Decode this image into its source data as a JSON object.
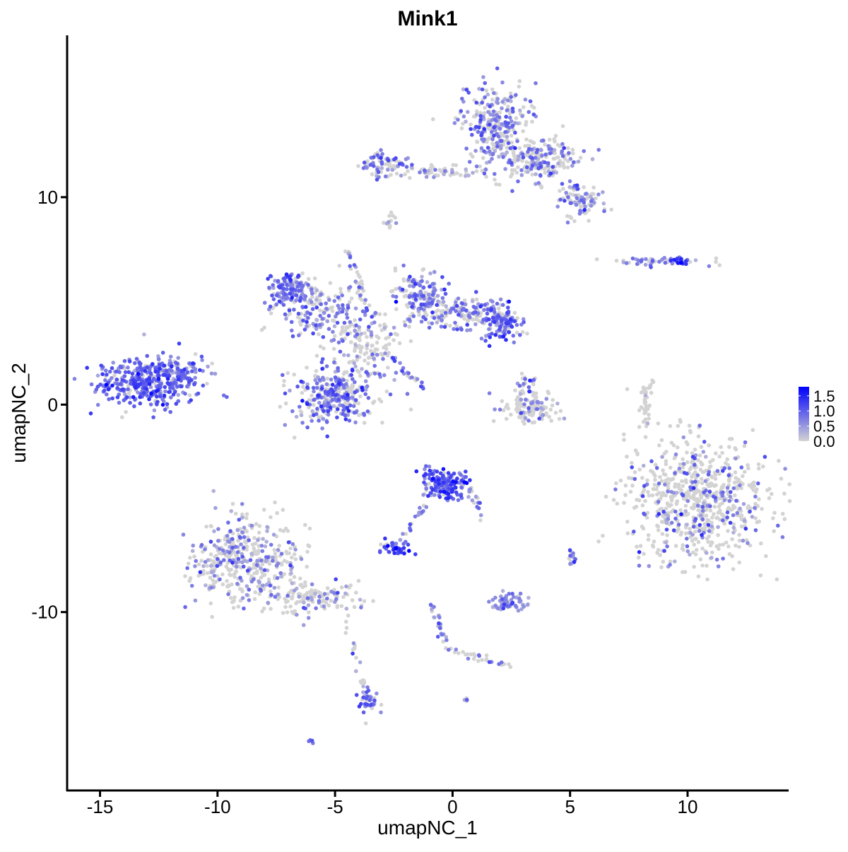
{
  "chart_data": {
    "type": "scatter",
    "title": "Mink1",
    "xlabel": "umapNC_1",
    "ylabel": "umapNC_2",
    "xlim": [
      -16.4,
      14.3
    ],
    "ylim": [
      -18.6,
      17.8
    ],
    "x_ticks": [
      -15,
      -10,
      -5,
      0,
      5,
      10
    ],
    "x_tick_labels": [
      "-15",
      "-10",
      "-5",
      "0",
      "5",
      "10"
    ],
    "y_ticks": [
      -10,
      0,
      10
    ],
    "y_tick_labels": [
      "-10",
      "0",
      "10"
    ],
    "grid": false,
    "color_scale": {
      "low": "#d3d3d3",
      "high": "#0000ff",
      "min": 0,
      "max": 1.8
    },
    "legend": {
      "placement": "right",
      "ticks": [
        1.5,
        1.0,
        0.5,
        0.0
      ],
      "tick_labels": [
        "1.5",
        "1.0",
        "0.5",
        "0.0"
      ]
    },
    "clusters": [
      {
        "x": -12.9,
        "y": 1.1,
        "sx": 1.1,
        "sy": 0.6,
        "n": 380,
        "p_expr": 0.85,
        "mean_expr": 0.9
      },
      {
        "x": -11.7,
        "y": 1.6,
        "sx": 0.6,
        "sy": 0.4,
        "n": 60,
        "p_expr": 0.7,
        "mean_expr": 0.7
      },
      {
        "x": 1.8,
        "y": 13.6,
        "sx": 0.7,
        "sy": 1.0,
        "n": 260,
        "p_expr": 0.55,
        "mean_expr": 0.7
      },
      {
        "x": 3.6,
        "y": 11.8,
        "sx": 0.9,
        "sy": 0.5,
        "n": 200,
        "p_expr": 0.4,
        "mean_expr": 0.7
      },
      {
        "x": 5.4,
        "y": 9.8,
        "sx": 0.5,
        "sy": 0.4,
        "n": 90,
        "p_expr": 0.5,
        "mean_expr": 0.7
      },
      {
        "x": -3.0,
        "y": 11.6,
        "sx": 0.6,
        "sy": 0.3,
        "n": 70,
        "p_expr": 0.55,
        "mean_expr": 0.7
      },
      {
        "x": -0.6,
        "y": 11.2,
        "sx": 1.1,
        "sy": 0.2,
        "n": 60,
        "p_expr": 0.3,
        "mean_expr": 0.6
      },
      {
        "x": -6.9,
        "y": 5.6,
        "sx": 0.5,
        "sy": 0.4,
        "n": 120,
        "p_expr": 0.8,
        "mean_expr": 0.8
      },
      {
        "x": -5.6,
        "y": 4.4,
        "sx": 0.9,
        "sy": 0.6,
        "n": 160,
        "p_expr": 0.55,
        "mean_expr": 0.7
      },
      {
        "x": -1.4,
        "y": 5.3,
        "sx": 0.5,
        "sy": 0.6,
        "n": 140,
        "p_expr": 0.6,
        "mean_expr": 0.7
      },
      {
        "x": 0.6,
        "y": 4.4,
        "sx": 1.0,
        "sy": 0.4,
        "n": 160,
        "p_expr": 0.45,
        "mean_expr": 0.7
      },
      {
        "x": 2.1,
        "y": 4.0,
        "sx": 0.4,
        "sy": 0.5,
        "n": 110,
        "p_expr": 0.8,
        "mean_expr": 0.9
      },
      {
        "x": -3.7,
        "y": 2.8,
        "sx": 0.9,
        "sy": 1.0,
        "n": 160,
        "p_expr": 0.35,
        "mean_expr": 0.6
      },
      {
        "x": -5.2,
        "y": 0.4,
        "sx": 0.8,
        "sy": 0.7,
        "n": 280,
        "p_expr": 0.65,
        "mean_expr": 0.8
      },
      {
        "x": -8.8,
        "y": -7.5,
        "sx": 1.1,
        "sy": 1.1,
        "n": 420,
        "p_expr": 0.35,
        "mean_expr": 0.6
      },
      {
        "x": -6.0,
        "y": -9.3,
        "sx": 1.0,
        "sy": 0.4,
        "n": 120,
        "p_expr": 0.25,
        "mean_expr": 0.6
      },
      {
        "x": -3.6,
        "y": -14.3,
        "sx": 0.2,
        "sy": 0.4,
        "n": 40,
        "p_expr": 0.6,
        "mean_expr": 0.8
      },
      {
        "x": 10.4,
        "y": -4.6,
        "sx": 1.5,
        "sy": 1.5,
        "n": 700,
        "p_expr": 0.22,
        "mean_expr": 0.7
      },
      {
        "x": -0.4,
        "y": -3.8,
        "sx": 0.5,
        "sy": 0.4,
        "n": 170,
        "p_expr": 0.85,
        "mean_expr": 1.0
      },
      {
        "x": -2.4,
        "y": -6.9,
        "sx": 0.3,
        "sy": 0.15,
        "n": 40,
        "p_expr": 0.9,
        "mean_expr": 1.3
      },
      {
        "x": 2.4,
        "y": -9.5,
        "sx": 0.4,
        "sy": 0.2,
        "n": 60,
        "p_expr": 0.9,
        "mean_expr": 0.6
      },
      {
        "x": 3.2,
        "y": -0.2,
        "sx": 0.6,
        "sy": 0.3,
        "n": 110,
        "p_expr": 0.25,
        "mean_expr": 0.6
      },
      {
        "x": 3.2,
        "y": 0.9,
        "sx": 0.2,
        "sy": 0.3,
        "n": 30,
        "p_expr": 0.6,
        "mean_expr": 0.9
      },
      {
        "x": 8.6,
        "y": 6.9,
        "sx": 1.0,
        "sy": 0.1,
        "n": 50,
        "p_expr": 0.5,
        "mean_expr": 0.7
      },
      {
        "x": 9.6,
        "y": 6.9,
        "sx": 0.2,
        "sy": 0.1,
        "n": 20,
        "p_expr": 0.9,
        "mean_expr": 1.2
      },
      {
        "x": 5.1,
        "y": -7.4,
        "sx": 0.1,
        "sy": 0.2,
        "n": 15,
        "p_expr": 0.7,
        "mean_expr": 0.8
      },
      {
        "x": 8.2,
        "y": -0.2,
        "sx": 0.15,
        "sy": 0.6,
        "n": 30,
        "p_expr": 0.1,
        "mean_expr": 0.5
      },
      {
        "x": -2.7,
        "y": 8.9,
        "sx": 0.15,
        "sy": 0.2,
        "n": 12,
        "p_expr": 0.3,
        "mean_expr": 0.5
      },
      {
        "x": -6.0,
        "y": -16.2,
        "sx": 0.1,
        "sy": 0.05,
        "n": 6,
        "p_expr": 0.8,
        "mean_expr": 0.7
      },
      {
        "x": 0.6,
        "y": -14.2,
        "sx": 0.05,
        "sy": 0.05,
        "n": 5,
        "p_expr": 0.8,
        "mean_expr": 0.8
      }
    ],
    "trails": [
      {
        "from": [
          -4.4,
          7.5
        ],
        "to": [
          -3.5,
          4.0
        ],
        "n": 30,
        "p_expr": 0.4
      },
      {
        "from": [
          -2.6,
          2.4
        ],
        "to": [
          -1.2,
          0.7
        ],
        "n": 25,
        "p_expr": 0.7
      },
      {
        "from": [
          -0.9,
          -9.5
        ],
        "to": [
          -0.2,
          -11.8
        ],
        "n": 25,
        "p_expr": 0.6
      },
      {
        "from": [
          -0.2,
          -11.8
        ],
        "to": [
          2.4,
          -12.6
        ],
        "n": 30,
        "p_expr": 0.3
      },
      {
        "from": [
          -1.0,
          -4.6
        ],
        "to": [
          -2.2,
          -6.6
        ],
        "n": 20,
        "p_expr": 0.7
      },
      {
        "from": [
          0.7,
          -3.8
        ],
        "to": [
          1.2,
          -5.6
        ],
        "n": 18,
        "p_expr": 0.6
      },
      {
        "from": [
          -4.6,
          -10.0
        ],
        "to": [
          -3.6,
          -14.5
        ],
        "n": 20,
        "p_expr": 0.3
      },
      {
        "from": [
          8.1,
          0.6
        ],
        "to": [
          8.6,
          1.2
        ],
        "n": 12,
        "p_expr": 0.1
      }
    ]
  }
}
